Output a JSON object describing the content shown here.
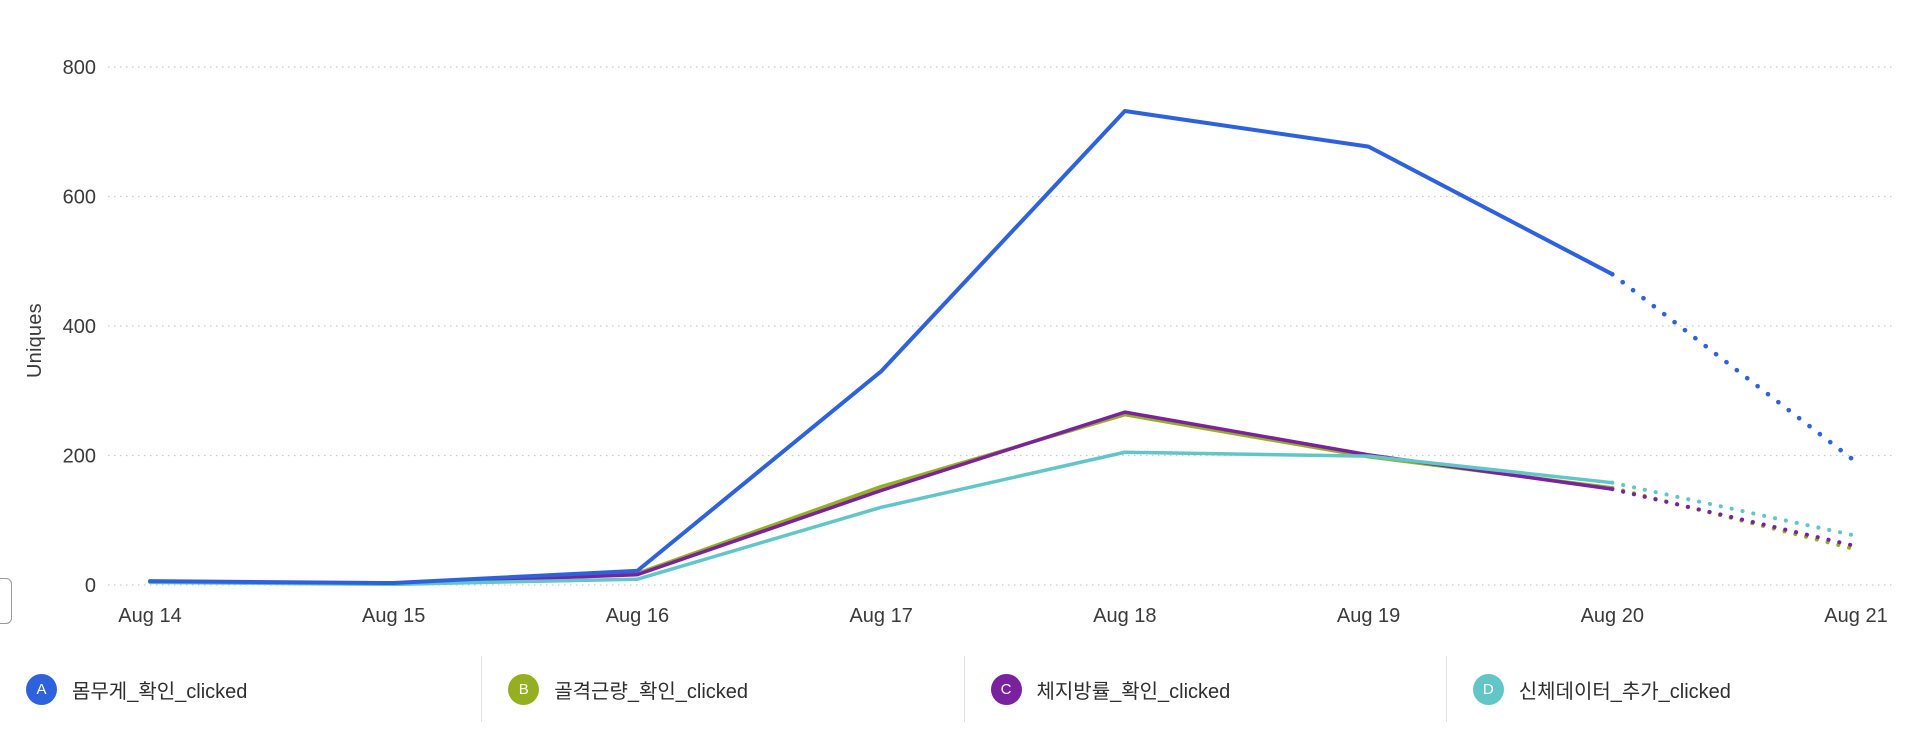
{
  "page": {
    "background": "#ffffff"
  },
  "chart_data": {
    "type": "line",
    "title": "",
    "xlabel": "",
    "ylabel": "Uniques",
    "x": [
      "Aug 14",
      "Aug 15",
      "Aug 16",
      "Aug 17",
      "Aug 18",
      "Aug 19",
      "Aug 20",
      "Aug 21"
    ],
    "ylim": [
      0,
      800
    ],
    "yticks": [
      0,
      200,
      400,
      600,
      800
    ],
    "grid": "horizontal-dotted",
    "grid_color": "#c9c9c9",
    "legend_position": "bottom",
    "incomplete_segment_start_index": 6,
    "series": [
      {
        "letter": "A",
        "name": "몸무게_확인_clicked",
        "color": "#2e62dd",
        "values": [
          6,
          3,
          22,
          330,
          732,
          677,
          480,
          190
        ]
      },
      {
        "letter": "B",
        "name": "골격근량_확인_clicked",
        "color": "#94b021",
        "values": [
          5,
          2,
          18,
          152,
          263,
          198,
          150,
          55
        ]
      },
      {
        "letter": "C",
        "name": "체지방률_확인_clicked",
        "color": "#7a219e",
        "values": [
          5,
          2,
          16,
          146,
          267,
          201,
          148,
          60
        ]
      },
      {
        "letter": "D",
        "name": "신체데이터_추가_clicked",
        "color": "#62c5c7",
        "values": [
          4,
          1,
          9,
          120,
          205,
          199,
          158,
          76
        ]
      }
    ]
  }
}
